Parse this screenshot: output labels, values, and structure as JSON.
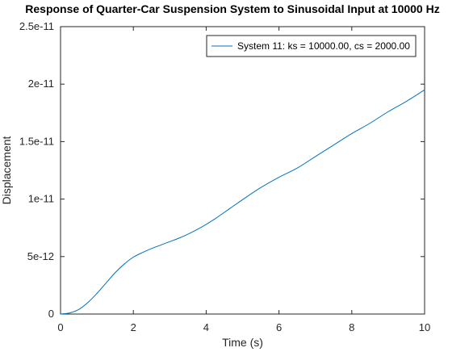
{
  "chart_data": {
    "type": "line",
    "title": "Response of Quarter-Car Suspension System to Sinusoidal Input at 10000 Hz",
    "xlabel": "Time (s)",
    "ylabel": "Displacement",
    "xlim": [
      0,
      10
    ],
    "ylim": [
      0,
      2.5e-11
    ],
    "xticks": [
      0,
      2,
      4,
      6,
      8,
      10
    ],
    "xtick_labels": [
      "0",
      "2",
      "4",
      "6",
      "8",
      "10"
    ],
    "yticks": [
      0,
      5e-12,
      1e-11,
      1.5e-11,
      2e-11,
      2.5e-11
    ],
    "ytick_labels": [
      "0",
      "5e-12",
      "1e-11",
      "1.5e-11",
      "2e-11",
      "2.5e-11"
    ],
    "grid": false,
    "legend_position": "top-right",
    "line_color": "#0072bd",
    "series": [
      {
        "name": "System 11: ks = 10000.00, cs = 2000.00",
        "x": [
          0,
          0.25,
          0.5,
          0.75,
          1.0,
          1.25,
          1.5,
          1.75,
          2.0,
          2.25,
          2.5,
          2.75,
          3.0,
          3.25,
          3.5,
          3.75,
          4.0,
          4.25,
          4.5,
          4.75,
          5.0,
          5.5,
          6.0,
          6.5,
          7.0,
          7.5,
          8.0,
          8.5,
          9.0,
          9.5,
          10.0
        ],
        "y": [
          0,
          1e-13,
          4e-13,
          1e-12,
          1.8e-12,
          2.7e-12,
          3.6e-12,
          4.35e-12,
          4.95e-12,
          5.35e-12,
          5.7e-12,
          6e-12,
          6.3e-12,
          6.6e-12,
          6.95e-12,
          7.35e-12,
          7.8e-12,
          8.3e-12,
          8.85e-12,
          9.4e-12,
          9.95e-12,
          1.1e-11,
          1.19e-11,
          1.27e-11,
          1.37e-11,
          1.47e-11,
          1.57e-11,
          1.66e-11,
          1.76e-11,
          1.85e-11,
          1.95e-11
        ]
      }
    ]
  }
}
